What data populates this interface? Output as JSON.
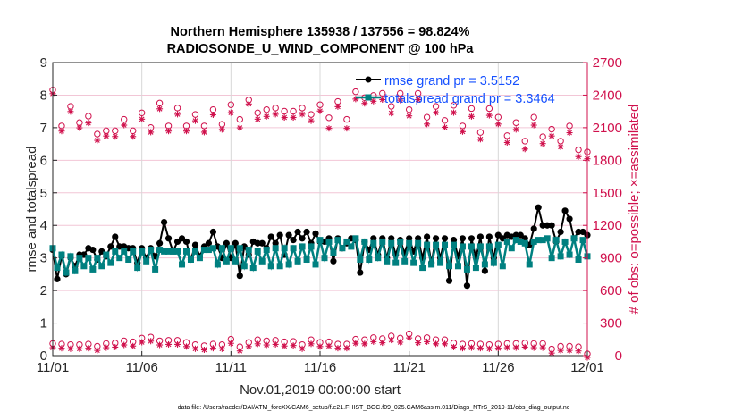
{
  "colors": {
    "rmse": "#000000",
    "totalspread": "#008080",
    "obs": "#d0104c",
    "legend_text": "#1550ff",
    "grid": "#f2c6d6",
    "vgrid": "#d8d8d8"
  },
  "chart_data": {
    "type": "line",
    "title": [
      "Northern Hemisphere 135938 / 137556 = 98.824%",
      "RADIOSONDE_U_WIND_COMPONENT @ 100 hPa"
    ],
    "xlabel": "Nov.01,2019 00:00:00 start",
    "ylabel": "rmse and totalspread",
    "y2label": "# of obs: o=possible; ×=assimilated",
    "footer": "data file: /Users/raeder/DAI/ATM_forcXX/CAM6_setup/f.e21.FHIST_BGC.f09_025.CAM6assim.011/Diags_NTrS_2019-11/obs_diag_output.nc",
    "xlim_days": [
      0,
      30
    ],
    "x_tick_labels": [
      "11/01",
      "11/06",
      "11/11",
      "11/16",
      "11/21",
      "11/26",
      "12/01"
    ],
    "ylim": [
      0,
      9
    ],
    "y_tick_labels": [
      "0",
      "1",
      "2",
      "3",
      "4",
      "5",
      "6",
      "7",
      "8",
      "9"
    ],
    "y2lim": [
      0,
      2700
    ],
    "y2_tick_labels": [
      "0",
      "300",
      "600",
      "900",
      "1200",
      "1500",
      "1800",
      "2100",
      "2400",
      "2700"
    ],
    "grid": true,
    "legend_position": "top-right",
    "series_interval_hours": 6,
    "obs_interval_hours": 12,
    "series": [
      {
        "name": "rmse grand pr = 3.5152",
        "axis": "left",
        "marker": "star-dot",
        "values": [
          3.25,
          2.35,
          3.05,
          2.5,
          3.0,
          2.75,
          3.1,
          3.1,
          3.3,
          3.25,
          2.95,
          3.2,
          3.05,
          3.35,
          3.65,
          3.35,
          3.35,
          3.3,
          3.3,
          2.85,
          3.3,
          3.0,
          3.3,
          3.05,
          3.45,
          4.1,
          3.6,
          3.2,
          3.5,
          3.6,
          3.5,
          2.95,
          3.4,
          3.05,
          3.35,
          3.45,
          3.8,
          3.35,
          3.0,
          3.45,
          3.0,
          3.45,
          2.45,
          3.35,
          3.1,
          3.5,
          3.45,
          3.45,
          3.3,
          3.65,
          3.45,
          3.7,
          3.1,
          3.7,
          3.55,
          3.8,
          3.6,
          3.8,
          3.45,
          3.75,
          3.5,
          3.5,
          3.6,
          2.9,
          3.6,
          3.3,
          3.45,
          3.6,
          3.55,
          2.55,
          3.5,
          3.25,
          3.6,
          3.1,
          3.6,
          3.0,
          3.6,
          3.1,
          3.55,
          3.15,
          3.6,
          3.2,
          3.6,
          3.0,
          3.65,
          2.85,
          3.6,
          3.0,
          3.6,
          2.3,
          3.55,
          3.05,
          3.6,
          2.15,
          3.6,
          3.0,
          3.65,
          2.6,
          3.65,
          3.0,
          3.7,
          3.6,
          3.7,
          3.65,
          3.7,
          3.7,
          3.6,
          3.4,
          3.9,
          4.55,
          4.0,
          4.0,
          4.0,
          3.5,
          3.8,
          4.45,
          4.2,
          3.6,
          3.8,
          3.8,
          3.7
        ]
      },
      {
        "name": "totalspread grand pr = 3.3464",
        "axis": "left",
        "marker": "square",
        "values": [
          3.3,
          2.7,
          3.1,
          2.55,
          3.05,
          2.6,
          3.0,
          2.75,
          3.0,
          2.65,
          3.0,
          2.75,
          3.1,
          2.85,
          3.2,
          3.0,
          3.2,
          2.95,
          3.2,
          2.7,
          3.2,
          2.9,
          3.25,
          2.65,
          3.25,
          3.2,
          3.2,
          3.2,
          3.2,
          2.8,
          3.2,
          2.95,
          3.2,
          3.0,
          3.25,
          3.25,
          3.3,
          2.8,
          3.3,
          2.9,
          3.3,
          2.9,
          3.3,
          2.75,
          3.25,
          2.7,
          3.2,
          2.9,
          3.25,
          2.75,
          3.3,
          2.75,
          3.3,
          2.8,
          3.3,
          2.9,
          3.35,
          2.95,
          3.35,
          2.8,
          3.55,
          3.0,
          3.5,
          3.15,
          3.55,
          3.3,
          3.5,
          3.35,
          3.6,
          2.95,
          3.5,
          2.95,
          3.45,
          3.0,
          3.5,
          2.9,
          3.45,
          2.85,
          3.5,
          2.9,
          3.45,
          2.85,
          3.45,
          2.7,
          3.4,
          2.8,
          3.4,
          2.85,
          3.4,
          2.75,
          3.4,
          2.75,
          3.35,
          2.65,
          3.35,
          2.7,
          3.35,
          2.8,
          3.35,
          2.85,
          3.4,
          2.75,
          3.5,
          3.3,
          3.55,
          3.5,
          3.45,
          2.8,
          3.5,
          3.55,
          3.55,
          3.6,
          3.0,
          3.55,
          3.05,
          3.5,
          3.1,
          3.6,
          2.95,
          3.55,
          3.05
        ]
      },
      {
        "name": "obs possible (upper)",
        "axis": "right",
        "marker": "circle-open",
        "values": [
          2430,
          2100,
          2280,
          2130,
          2190,
          2025,
          2055,
          2055,
          2160,
          2055,
          2220,
          2085,
          2310,
          2100,
          2265,
          2100,
          2205,
          2100,
          2250,
          2115,
          2295,
          2160,
          2340,
          2220,
          2250,
          2265,
          2235,
          2235,
          2265,
          2205,
          2295,
          2175,
          2325,
          2160,
          2415,
          2360,
          2380,
          2400,
          2280,
          2400,
          2250,
          2400,
          2180,
          2280,
          2150,
          2290,
          2100,
          2260,
          2040,
          2260,
          2180,
          2010,
          2130,
          1960,
          2180,
          2000,
          2070,
          1960,
          2100,
          1880,
          1860
        ]
      },
      {
        "name": "obs assimilated (upper)",
        "axis": "right",
        "marker": "asterisk",
        "values": [
          2430,
          2085,
          2265,
          2115,
          2160,
          2000,
          2040,
          2035,
          2140,
          2035,
          2195,
          2075,
          2290,
          2085,
          2240,
          2085,
          2180,
          2075,
          2235,
          2100,
          2255,
          2115,
          2335,
          2195,
          2220,
          2240,
          2210,
          2210,
          2240,
          2180,
          2270,
          2110,
          2310,
          2110,
          2380,
          2340,
          2360,
          2375,
          2250,
          2370,
          2225,
          2375,
          2150,
          2255,
          2120,
          2255,
          2080,
          2220,
          2010,
          2230,
          2150,
          1980,
          2100,
          1920,
          2140,
          1970,
          2040,
          1940,
          2070,
          1850,
          1830
        ]
      },
      {
        "name": "obs possible (lower)",
        "axis": "right",
        "marker": "circle-open",
        "values": [
          95,
          90,
          85,
          85,
          90,
          70,
          95,
          100,
          120,
          110,
          145,
          155,
          120,
          125,
          125,
          105,
          85,
          75,
          90,
          85,
          135,
          65,
          105,
          130,
          120,
          125,
          110,
          115,
          85,
          130,
          105,
          110,
          90,
          90,
          135,
          130,
          150,
          140,
          165,
          145,
          185,
          140,
          150,
          130,
          130,
          100,
          90,
          95,
          90,
          85,
          90,
          95,
          95,
          100,
          95,
          95,
          45,
          70,
          70,
          65,
          0
        ]
      },
      {
        "name": "obs assimilated (lower)",
        "axis": "right",
        "marker": "asterisk",
        "values": [
          90,
          85,
          80,
          80,
          85,
          65,
          90,
          95,
          115,
          105,
          140,
          150,
          115,
          120,
          120,
          100,
          80,
          70,
          85,
          80,
          130,
          60,
          100,
          125,
          115,
          120,
          105,
          110,
          80,
          125,
          100,
          105,
          85,
          85,
          130,
          125,
          145,
          135,
          160,
          140,
          180,
          135,
          145,
          125,
          125,
          95,
          85,
          90,
          85,
          80,
          85,
          90,
          90,
          95,
          90,
          90,
          40,
          65,
          65,
          60,
          0
        ]
      }
    ]
  }
}
